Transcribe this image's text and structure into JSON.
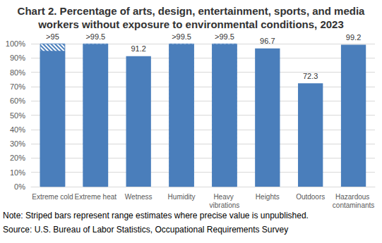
{
  "chart_data": {
    "type": "bar",
    "title": "Chart 2. Percentage of arts, design, entertainment, sports, and media workers without exposure to environmental conditions, 2023",
    "categories": [
      "Extreme cold",
      "Extreme heat",
      "Wetness",
      "Humidity",
      "Heavy vibrations",
      "Heights",
      "Outdoors",
      "Hazardous contaminants"
    ],
    "values": [
      95,
      99.5,
      91.2,
      99.5,
      99.5,
      96.7,
      72.3,
      99.2
    ],
    "value_labels": [
      ">95",
      ">99.5",
      "91.2",
      ">99.5",
      ">99.5",
      "96.7",
      "72.3",
      "99.2"
    ],
    "range_upper": [
      100,
      100,
      null,
      100,
      100,
      null,
      null,
      null
    ],
    "color": "#4a7ebb",
    "ylim": [
      0,
      100
    ],
    "yticks": [
      {
        "value": 0,
        "label": "0%"
      },
      {
        "value": 10,
        "label": "10%"
      },
      {
        "value": 20,
        "label": "20%"
      },
      {
        "value": 30,
        "label": "30%"
      },
      {
        "value": 40,
        "label": "40%"
      },
      {
        "value": 50,
        "label": "50%"
      },
      {
        "value": 60,
        "label": "60%"
      },
      {
        "value": 70,
        "label": "70%"
      },
      {
        "value": 80,
        "label": "80%"
      },
      {
        "value": 90,
        "label": "90%"
      },
      {
        "value": 100,
        "label": "100%"
      }
    ],
    "grid": true,
    "data_labels": true,
    "annotations": [
      "Note: Striped bars represent range estimates where precise value is unpublished.",
      "Source: U.S. Bureau of Labor Statistics, Occupational Requirements Survey"
    ]
  }
}
